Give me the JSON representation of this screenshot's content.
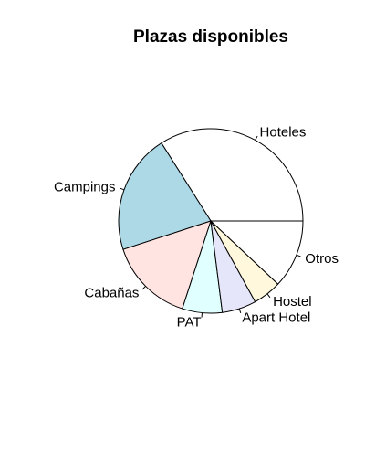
{
  "chart_data": {
    "type": "pie",
    "title": "Plazas disponibles",
    "start_angle_deg": 0,
    "direction": "counterclockwise",
    "slices": [
      {
        "label": "Hoteles",
        "value": 34,
        "color": "#FFFFFF"
      },
      {
        "label": "Campings",
        "value": 21,
        "color": "#ADD8E6"
      },
      {
        "label": "Cabañas",
        "value": 15,
        "color": "#FFE4E1"
      },
      {
        "label": "PAT",
        "value": 7,
        "color": "#E0FFFF"
      },
      {
        "label": "Apart Hotel",
        "value": 6,
        "color": "#E6E6FA"
      },
      {
        "label": "Hostel",
        "value": 5,
        "color": "#FFF8DC"
      },
      {
        "label": "Otros",
        "value": 12,
        "color": "#FFFFFF"
      }
    ]
  }
}
